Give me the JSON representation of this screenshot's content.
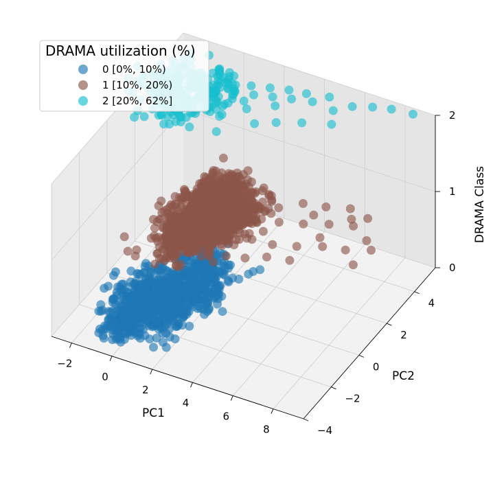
{
  "chart_data": {
    "type": "scatter",
    "title": "",
    "xlabel": "PC1",
    "ylabel": "PC2",
    "zlabel": "DRAMA Class",
    "xlim": [
      -3,
      9.5
    ],
    "ylim": [
      -4,
      5.5
    ],
    "zlim": [
      0,
      2
    ],
    "x_ticks": [
      "−2",
      "0",
      "2",
      "4",
      "6",
      "8"
    ],
    "x_tick_values": [
      -2,
      0,
      2,
      4,
      6,
      8
    ],
    "y_ticks": [
      "−4",
      "−2",
      "0",
      "2",
      "4"
    ],
    "y_tick_values": [
      -4,
      -2,
      0,
      2,
      4
    ],
    "z_ticks": [
      "0",
      "1",
      "2"
    ],
    "z_tick_values": [
      0,
      1,
      2
    ],
    "legend": {
      "title": "DRAMA utilization (%)",
      "placement": "upper-left",
      "entries": [
        "0 [0%, 10%)",
        "1 [10%, 20%)",
        "2 [20%, 62%]"
      ]
    },
    "series": [
      {
        "name": "0 [0%, 10%)",
        "class": 0,
        "color": "#1f77b4",
        "count": 900,
        "core_points": [
          [
            0.0,
            0.0
          ],
          [
            -0.5,
            0.5
          ],
          [
            0.5,
            -0.5
          ],
          [
            0.8,
            0.7
          ],
          [
            -0.8,
            -0.6
          ],
          [
            0.3,
            1.4
          ],
          [
            -0.3,
            -1.3
          ],
          [
            1.2,
            -0.2
          ],
          [
            -1.1,
            0.2
          ],
          [
            0.6,
            1.9
          ],
          [
            -0.4,
            -1.9
          ],
          [
            1.3,
            0.8
          ],
          [
            -1.3,
            -1.0
          ],
          [
            0.9,
            -1.5
          ],
          [
            0.2,
            2.3
          ],
          [
            -0.6,
            -2.4
          ]
        ],
        "outliers": [
          [
            1.2,
            0.8
          ],
          [
            1.4,
            0.5
          ],
          [
            1.8,
            1.2
          ],
          [
            2.0,
            1.5
          ],
          [
            2.3,
            1.8
          ],
          [
            2.6,
            2.4
          ],
          [
            2.8,
            2.6
          ],
          [
            2.5,
            2.2
          ],
          [
            1.9,
            0.0
          ],
          [
            1.7,
            -0.3
          ],
          [
            1.5,
            -2.5
          ],
          [
            1.3,
            -2.9
          ],
          [
            1.8,
            -2.7
          ]
        ]
      },
      {
        "name": "1 [10%, 20%)",
        "class": 1,
        "color": "#8c564b",
        "count": 1100,
        "core_points": [
          [
            1.5,
            0.5
          ],
          [
            1.0,
            1.2
          ],
          [
            2.0,
            -0.3
          ],
          [
            0.8,
            -0.5
          ],
          [
            2.3,
            0.9
          ],
          [
            1.2,
            1.7
          ],
          [
            1.8,
            -0.8
          ],
          [
            0.6,
            0.6
          ],
          [
            2.6,
            0.3
          ],
          [
            1.5,
            2.2
          ],
          [
            2.2,
            1.6
          ],
          [
            1.3,
            -1.2
          ],
          [
            2.8,
            1.4
          ],
          [
            0.9,
            2.4
          ]
        ],
        "outliers": [
          [
            3.2,
            0.5
          ],
          [
            3.5,
            1.0
          ],
          [
            3.8,
            0.2
          ],
          [
            4.2,
            0.8
          ],
          [
            4.5,
            1.5
          ],
          [
            5.0,
            0.3
          ],
          [
            5.5,
            1.8
          ],
          [
            6.0,
            0.6
          ],
          [
            6.5,
            2.2
          ],
          [
            7.0,
            1.0
          ],
          [
            7.5,
            2.5
          ],
          [
            8.0,
            1.2
          ],
          [
            8.5,
            2.0
          ],
          [
            9.0,
            1.6
          ],
          [
            8.8,
            0.6
          ],
          [
            3.0,
            -0.5
          ],
          [
            3.6,
            -1.0
          ],
          [
            4.0,
            2.2
          ],
          [
            4.8,
            2.8
          ],
          [
            5.8,
            3.0
          ],
          [
            6.8,
            3.3
          ],
          [
            7.8,
            3.1
          ],
          [
            3.3,
            -1.5
          ],
          [
            4.4,
            -0.8
          ],
          [
            5.2,
            -0.4
          ],
          [
            6.2,
            -0.2
          ],
          [
            2.8,
            -1.0
          ],
          [
            3.9,
            1.8
          ],
          [
            5.6,
            2.4
          ],
          [
            7.2,
            2.8
          ],
          [
            6.6,
            1.4
          ]
        ]
      },
      {
        "name": "2 [20%, 62%]",
        "class": 2,
        "color": "#17becf",
        "count": 300,
        "core_points": [
          [
            -2.0,
            2.5
          ],
          [
            -1.5,
            3.0
          ],
          [
            -1.0,
            2.2
          ],
          [
            -0.5,
            3.3
          ],
          [
            -1.8,
            3.4
          ],
          [
            -1.2,
            1.6
          ],
          [
            -2.2,
            3.1
          ],
          [
            -0.2,
            2.6
          ],
          [
            0.0,
            3.4
          ],
          [
            -0.8,
            1.5
          ],
          [
            0.4,
            2.9
          ]
        ],
        "outliers": [
          [
            0.6,
            3.8
          ],
          [
            1.0,
            3.3
          ],
          [
            1.4,
            4.0
          ],
          [
            1.8,
            3.6
          ],
          [
            2.2,
            4.2
          ],
          [
            2.6,
            3.8
          ],
          [
            3.0,
            4.4
          ],
          [
            3.4,
            4.0
          ],
          [
            3.8,
            4.5
          ],
          [
            4.3,
            4.2
          ],
          [
            4.8,
            4.7
          ],
          [
            5.4,
            4.1
          ],
          [
            6.0,
            4.6
          ],
          [
            6.8,
            4.9
          ],
          [
            7.6,
            5.1
          ],
          [
            8.6,
            5.2
          ],
          [
            1.2,
            2.0
          ],
          [
            2.0,
            2.8
          ],
          [
            2.8,
            2.2
          ],
          [
            3.6,
            2.6
          ],
          [
            4.6,
            3.0
          ],
          [
            5.8,
            3.4
          ],
          [
            1.6,
            1.2
          ],
          [
            0.4,
            1.0
          ],
          [
            3.0,
            3.4
          ]
        ]
      }
    ]
  }
}
